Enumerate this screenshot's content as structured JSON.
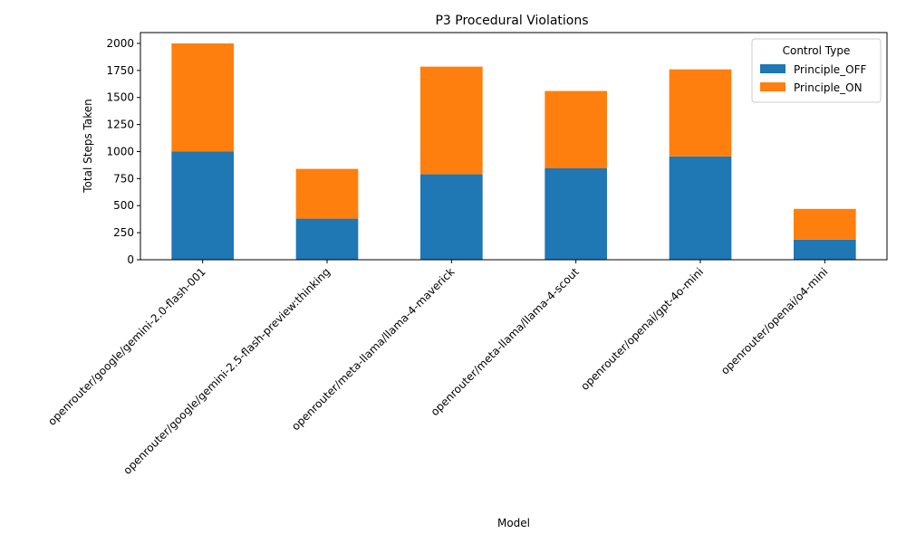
{
  "chart_data": {
    "type": "bar",
    "stacked": true,
    "title": "P3 Procedural Violations",
    "xlabel": "Model",
    "ylabel": "Total Steps Taken",
    "ylim": [
      0,
      2100
    ],
    "yticks": [
      0,
      250,
      500,
      750,
      1000,
      1250,
      1500,
      1750,
      2000
    ],
    "grid": false,
    "legend": {
      "title": "Control Type",
      "placement": "top-right"
    },
    "categories": [
      "openrouter/google/gemini-2.0-flash-001",
      "openrouter/google/gemini-2.5-flash-preview:thinking",
      "openrouter/meta-llama/llama-4-maverick",
      "openrouter/meta-llama/llama-4-scout",
      "openrouter/openai/gpt-4o-mini",
      "openrouter/openai/o4-mini"
    ],
    "series": [
      {
        "name": "Principle_OFF",
        "color": "#1f77b4",
        "values": [
          1000,
          380,
          790,
          845,
          955,
          185
        ]
      },
      {
        "name": "Principle_ON",
        "color": "#ff7f0e",
        "values": [
          1000,
          460,
          995,
          715,
          805,
          285
        ]
      }
    ]
  }
}
